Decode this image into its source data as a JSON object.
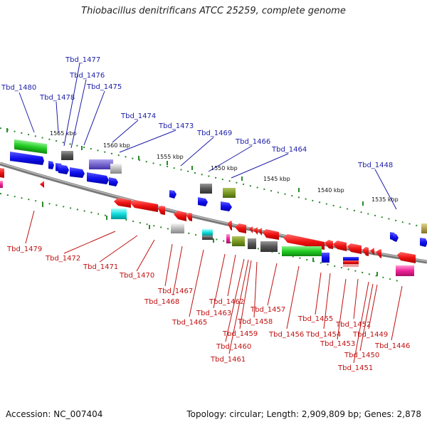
{
  "title": "Thiobacillus denitrificans ATCC 25259, complete genome",
  "footer": {
    "accession": "Accession: NC_007404",
    "topology": "Topology: circular; Length: 2,909,809 bp; Genes: 2,878"
  },
  "kbp_labels": [
    "1565 kbp",
    "1560 kbp",
    "1555 kbp",
    "1550 kbp",
    "1545 kbp",
    "1540 kbp",
    "1535 kbp"
  ],
  "upper_labels": [
    "Tbd_1477",
    "Tbd_1476",
    "Tbd_1480",
    "Tbd_1478",
    "Tbd_1475",
    "Tbd_1474",
    "Tbd_1473",
    "Tbd_1469",
    "Tbd_1466",
    "Tbd_1464",
    "Tbd_1448"
  ],
  "lower_labels": [
    "Tbd_1479",
    "Tbd_1472",
    "Tbd_1471",
    "Tbd_1470",
    "Tbd_1467",
    "Tbd_1468",
    "Tbd_1462",
    "Tbd_1463",
    "Tbd_1465",
    "Tbd_1457",
    "Tbd_1458",
    "Tbd_1459",
    "Tbd_1460",
    "Tbd_1461",
    "Tbd_1456",
    "Tbd_1455",
    "Tbd_1454",
    "Tbd_1453",
    "Tbd_1452",
    "Tbd_1449",
    "Tbd_1450",
    "Tbd_1451",
    "Tbd_1446"
  ],
  "colors": {
    "upper_label": "#1c1ca8",
    "lower_label": "#c01010",
    "backbone": "#888888",
    "tick": "#2a8a2a"
  }
}
